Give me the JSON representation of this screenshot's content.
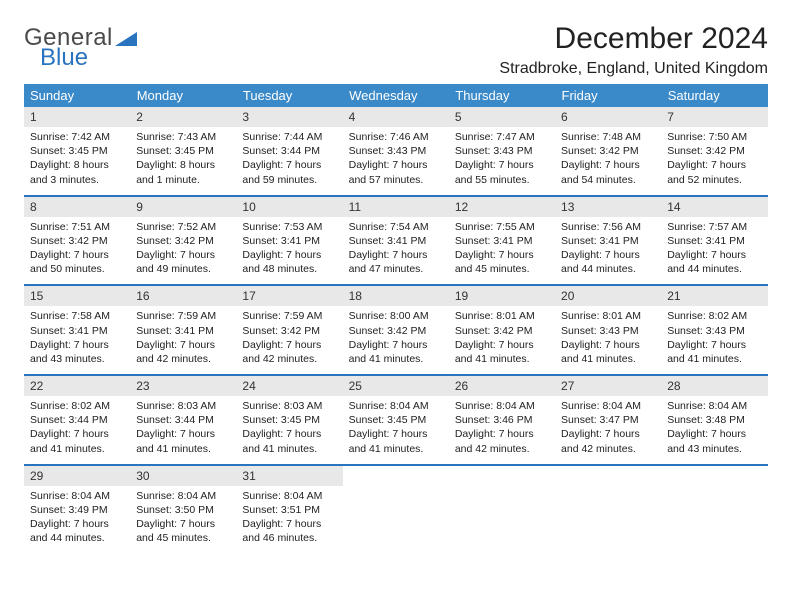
{
  "logo": {
    "word1": "General",
    "word2": "Blue"
  },
  "title": "December 2024",
  "subtitle": "Stradbroke, England, United Kingdom",
  "colors": {
    "headerBar": "#3a89c9",
    "accent": "#2a74bf",
    "numBg": "#e8e8e8"
  },
  "dayNames": [
    "Sunday",
    "Monday",
    "Tuesday",
    "Wednesday",
    "Thursday",
    "Friday",
    "Saturday"
  ],
  "weeks": [
    [
      {
        "n": "1",
        "l1": "Sunrise: 7:42 AM",
        "l2": "Sunset: 3:45 PM",
        "l3": "Daylight: 8 hours",
        "l4": "and 3 minutes."
      },
      {
        "n": "2",
        "l1": "Sunrise: 7:43 AM",
        "l2": "Sunset: 3:45 PM",
        "l3": "Daylight: 8 hours",
        "l4": "and 1 minute."
      },
      {
        "n": "3",
        "l1": "Sunrise: 7:44 AM",
        "l2": "Sunset: 3:44 PM",
        "l3": "Daylight: 7 hours",
        "l4": "and 59 minutes."
      },
      {
        "n": "4",
        "l1": "Sunrise: 7:46 AM",
        "l2": "Sunset: 3:43 PM",
        "l3": "Daylight: 7 hours",
        "l4": "and 57 minutes."
      },
      {
        "n": "5",
        "l1": "Sunrise: 7:47 AM",
        "l2": "Sunset: 3:43 PM",
        "l3": "Daylight: 7 hours",
        "l4": "and 55 minutes."
      },
      {
        "n": "6",
        "l1": "Sunrise: 7:48 AM",
        "l2": "Sunset: 3:42 PM",
        "l3": "Daylight: 7 hours",
        "l4": "and 54 minutes."
      },
      {
        "n": "7",
        "l1": "Sunrise: 7:50 AM",
        "l2": "Sunset: 3:42 PM",
        "l3": "Daylight: 7 hours",
        "l4": "and 52 minutes."
      }
    ],
    [
      {
        "n": "8",
        "l1": "Sunrise: 7:51 AM",
        "l2": "Sunset: 3:42 PM",
        "l3": "Daylight: 7 hours",
        "l4": "and 50 minutes."
      },
      {
        "n": "9",
        "l1": "Sunrise: 7:52 AM",
        "l2": "Sunset: 3:42 PM",
        "l3": "Daylight: 7 hours",
        "l4": "and 49 minutes."
      },
      {
        "n": "10",
        "l1": "Sunrise: 7:53 AM",
        "l2": "Sunset: 3:41 PM",
        "l3": "Daylight: 7 hours",
        "l4": "and 48 minutes."
      },
      {
        "n": "11",
        "l1": "Sunrise: 7:54 AM",
        "l2": "Sunset: 3:41 PM",
        "l3": "Daylight: 7 hours",
        "l4": "and 47 minutes."
      },
      {
        "n": "12",
        "l1": "Sunrise: 7:55 AM",
        "l2": "Sunset: 3:41 PM",
        "l3": "Daylight: 7 hours",
        "l4": "and 45 minutes."
      },
      {
        "n": "13",
        "l1": "Sunrise: 7:56 AM",
        "l2": "Sunset: 3:41 PM",
        "l3": "Daylight: 7 hours",
        "l4": "and 44 minutes."
      },
      {
        "n": "14",
        "l1": "Sunrise: 7:57 AM",
        "l2": "Sunset: 3:41 PM",
        "l3": "Daylight: 7 hours",
        "l4": "and 44 minutes."
      }
    ],
    [
      {
        "n": "15",
        "l1": "Sunrise: 7:58 AM",
        "l2": "Sunset: 3:41 PM",
        "l3": "Daylight: 7 hours",
        "l4": "and 43 minutes."
      },
      {
        "n": "16",
        "l1": "Sunrise: 7:59 AM",
        "l2": "Sunset: 3:41 PM",
        "l3": "Daylight: 7 hours",
        "l4": "and 42 minutes."
      },
      {
        "n": "17",
        "l1": "Sunrise: 7:59 AM",
        "l2": "Sunset: 3:42 PM",
        "l3": "Daylight: 7 hours",
        "l4": "and 42 minutes."
      },
      {
        "n": "18",
        "l1": "Sunrise: 8:00 AM",
        "l2": "Sunset: 3:42 PM",
        "l3": "Daylight: 7 hours",
        "l4": "and 41 minutes."
      },
      {
        "n": "19",
        "l1": "Sunrise: 8:01 AM",
        "l2": "Sunset: 3:42 PM",
        "l3": "Daylight: 7 hours",
        "l4": "and 41 minutes."
      },
      {
        "n": "20",
        "l1": "Sunrise: 8:01 AM",
        "l2": "Sunset: 3:43 PM",
        "l3": "Daylight: 7 hours",
        "l4": "and 41 minutes."
      },
      {
        "n": "21",
        "l1": "Sunrise: 8:02 AM",
        "l2": "Sunset: 3:43 PM",
        "l3": "Daylight: 7 hours",
        "l4": "and 41 minutes."
      }
    ],
    [
      {
        "n": "22",
        "l1": "Sunrise: 8:02 AM",
        "l2": "Sunset: 3:44 PM",
        "l3": "Daylight: 7 hours",
        "l4": "and 41 minutes."
      },
      {
        "n": "23",
        "l1": "Sunrise: 8:03 AM",
        "l2": "Sunset: 3:44 PM",
        "l3": "Daylight: 7 hours",
        "l4": "and 41 minutes."
      },
      {
        "n": "24",
        "l1": "Sunrise: 8:03 AM",
        "l2": "Sunset: 3:45 PM",
        "l3": "Daylight: 7 hours",
        "l4": "and 41 minutes."
      },
      {
        "n": "25",
        "l1": "Sunrise: 8:04 AM",
        "l2": "Sunset: 3:45 PM",
        "l3": "Daylight: 7 hours",
        "l4": "and 41 minutes."
      },
      {
        "n": "26",
        "l1": "Sunrise: 8:04 AM",
        "l2": "Sunset: 3:46 PM",
        "l3": "Daylight: 7 hours",
        "l4": "and 42 minutes."
      },
      {
        "n": "27",
        "l1": "Sunrise: 8:04 AM",
        "l2": "Sunset: 3:47 PM",
        "l3": "Daylight: 7 hours",
        "l4": "and 42 minutes."
      },
      {
        "n": "28",
        "l1": "Sunrise: 8:04 AM",
        "l2": "Sunset: 3:48 PM",
        "l3": "Daylight: 7 hours",
        "l4": "and 43 minutes."
      }
    ],
    [
      {
        "n": "29",
        "l1": "Sunrise: 8:04 AM",
        "l2": "Sunset: 3:49 PM",
        "l3": "Daylight: 7 hours",
        "l4": "and 44 minutes."
      },
      {
        "n": "30",
        "l1": "Sunrise: 8:04 AM",
        "l2": "Sunset: 3:50 PM",
        "l3": "Daylight: 7 hours",
        "l4": "and 45 minutes."
      },
      {
        "n": "31",
        "l1": "Sunrise: 8:04 AM",
        "l2": "Sunset: 3:51 PM",
        "l3": "Daylight: 7 hours",
        "l4": "and 46 minutes."
      },
      null,
      null,
      null,
      null
    ]
  ]
}
